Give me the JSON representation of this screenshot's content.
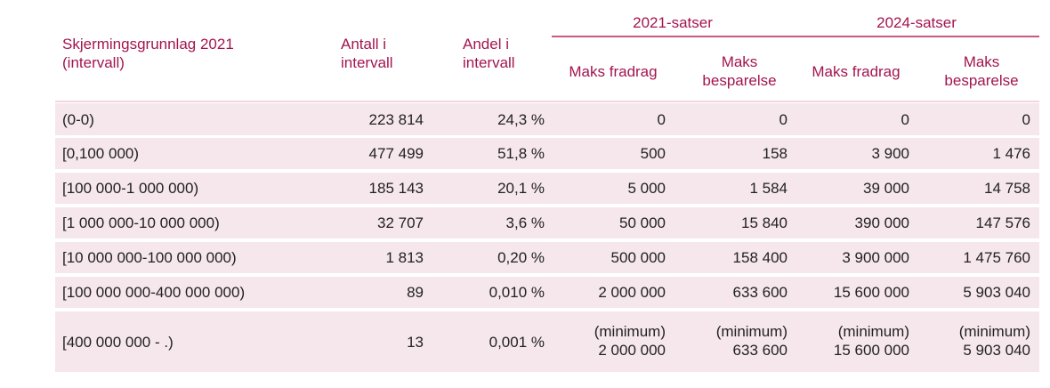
{
  "header": {
    "col_interval": "Skjermingsgrunnlag 2021\n(intervall)",
    "col_count": "Antall i\nintervall",
    "col_share": "Andel i\nintervall",
    "group_2021": "2021-satser",
    "group_2024": "2024-satser",
    "max_deduction_2021": "Maks fradrag",
    "max_saving_2021": "Maks\nbesparelse",
    "max_deduction_2024": "Maks fradrag",
    "max_saving_2024": "Maks\nbesparelse"
  },
  "rows": [
    {
      "interval": "(0-0)",
      "count": "223 814",
      "share": "24,3 %",
      "d2021": "0",
      "s2021": "0",
      "d2024": "0",
      "s2024": "0"
    },
    {
      "interval": "[0,100 000)",
      "count": "477 499",
      "share": "51,8 %",
      "d2021": "500",
      "s2021": "158",
      "d2024": "3 900",
      "s2024": "1 476"
    },
    {
      "interval": "[100 000-1 000 000)",
      "count": "185 143",
      "share": "20,1 %",
      "d2021": "5 000",
      "s2021": "1 584",
      "d2024": "39 000",
      "s2024": "14 758"
    },
    {
      "interval": "[1 000 000-10 000 000)",
      "count": "32 707",
      "share": "3,6 %",
      "d2021": "50 000",
      "s2021": "15 840",
      "d2024": "390 000",
      "s2024": "147 576"
    },
    {
      "interval": "[10 000 000-100 000 000)",
      "count": "1 813",
      "share": "0,20 %",
      "d2021": "500 000",
      "s2021": "158 400",
      "d2024": "3 900 000",
      "s2024": "1 475 760"
    },
    {
      "interval": "[100 000 000-400 000 000)",
      "count": "89",
      "share": "0,010 %",
      "d2021": "2 000 000",
      "s2021": "633 600",
      "d2024": "15 600 000",
      "s2024": "5 903 040"
    },
    {
      "interval": "[400 000 000 - .)",
      "count": "13",
      "share": "0,001 %",
      "d2021_a": "(minimum)",
      "d2021_b": "2 000 000",
      "s2021_a": "(minimum)",
      "s2021_b": "633 600",
      "d2024_a": "(minimum)",
      "d2024_b": "15 600 000",
      "s2024_a": "(minimum)",
      "s2024_b": "5 903 040"
    }
  ]
}
